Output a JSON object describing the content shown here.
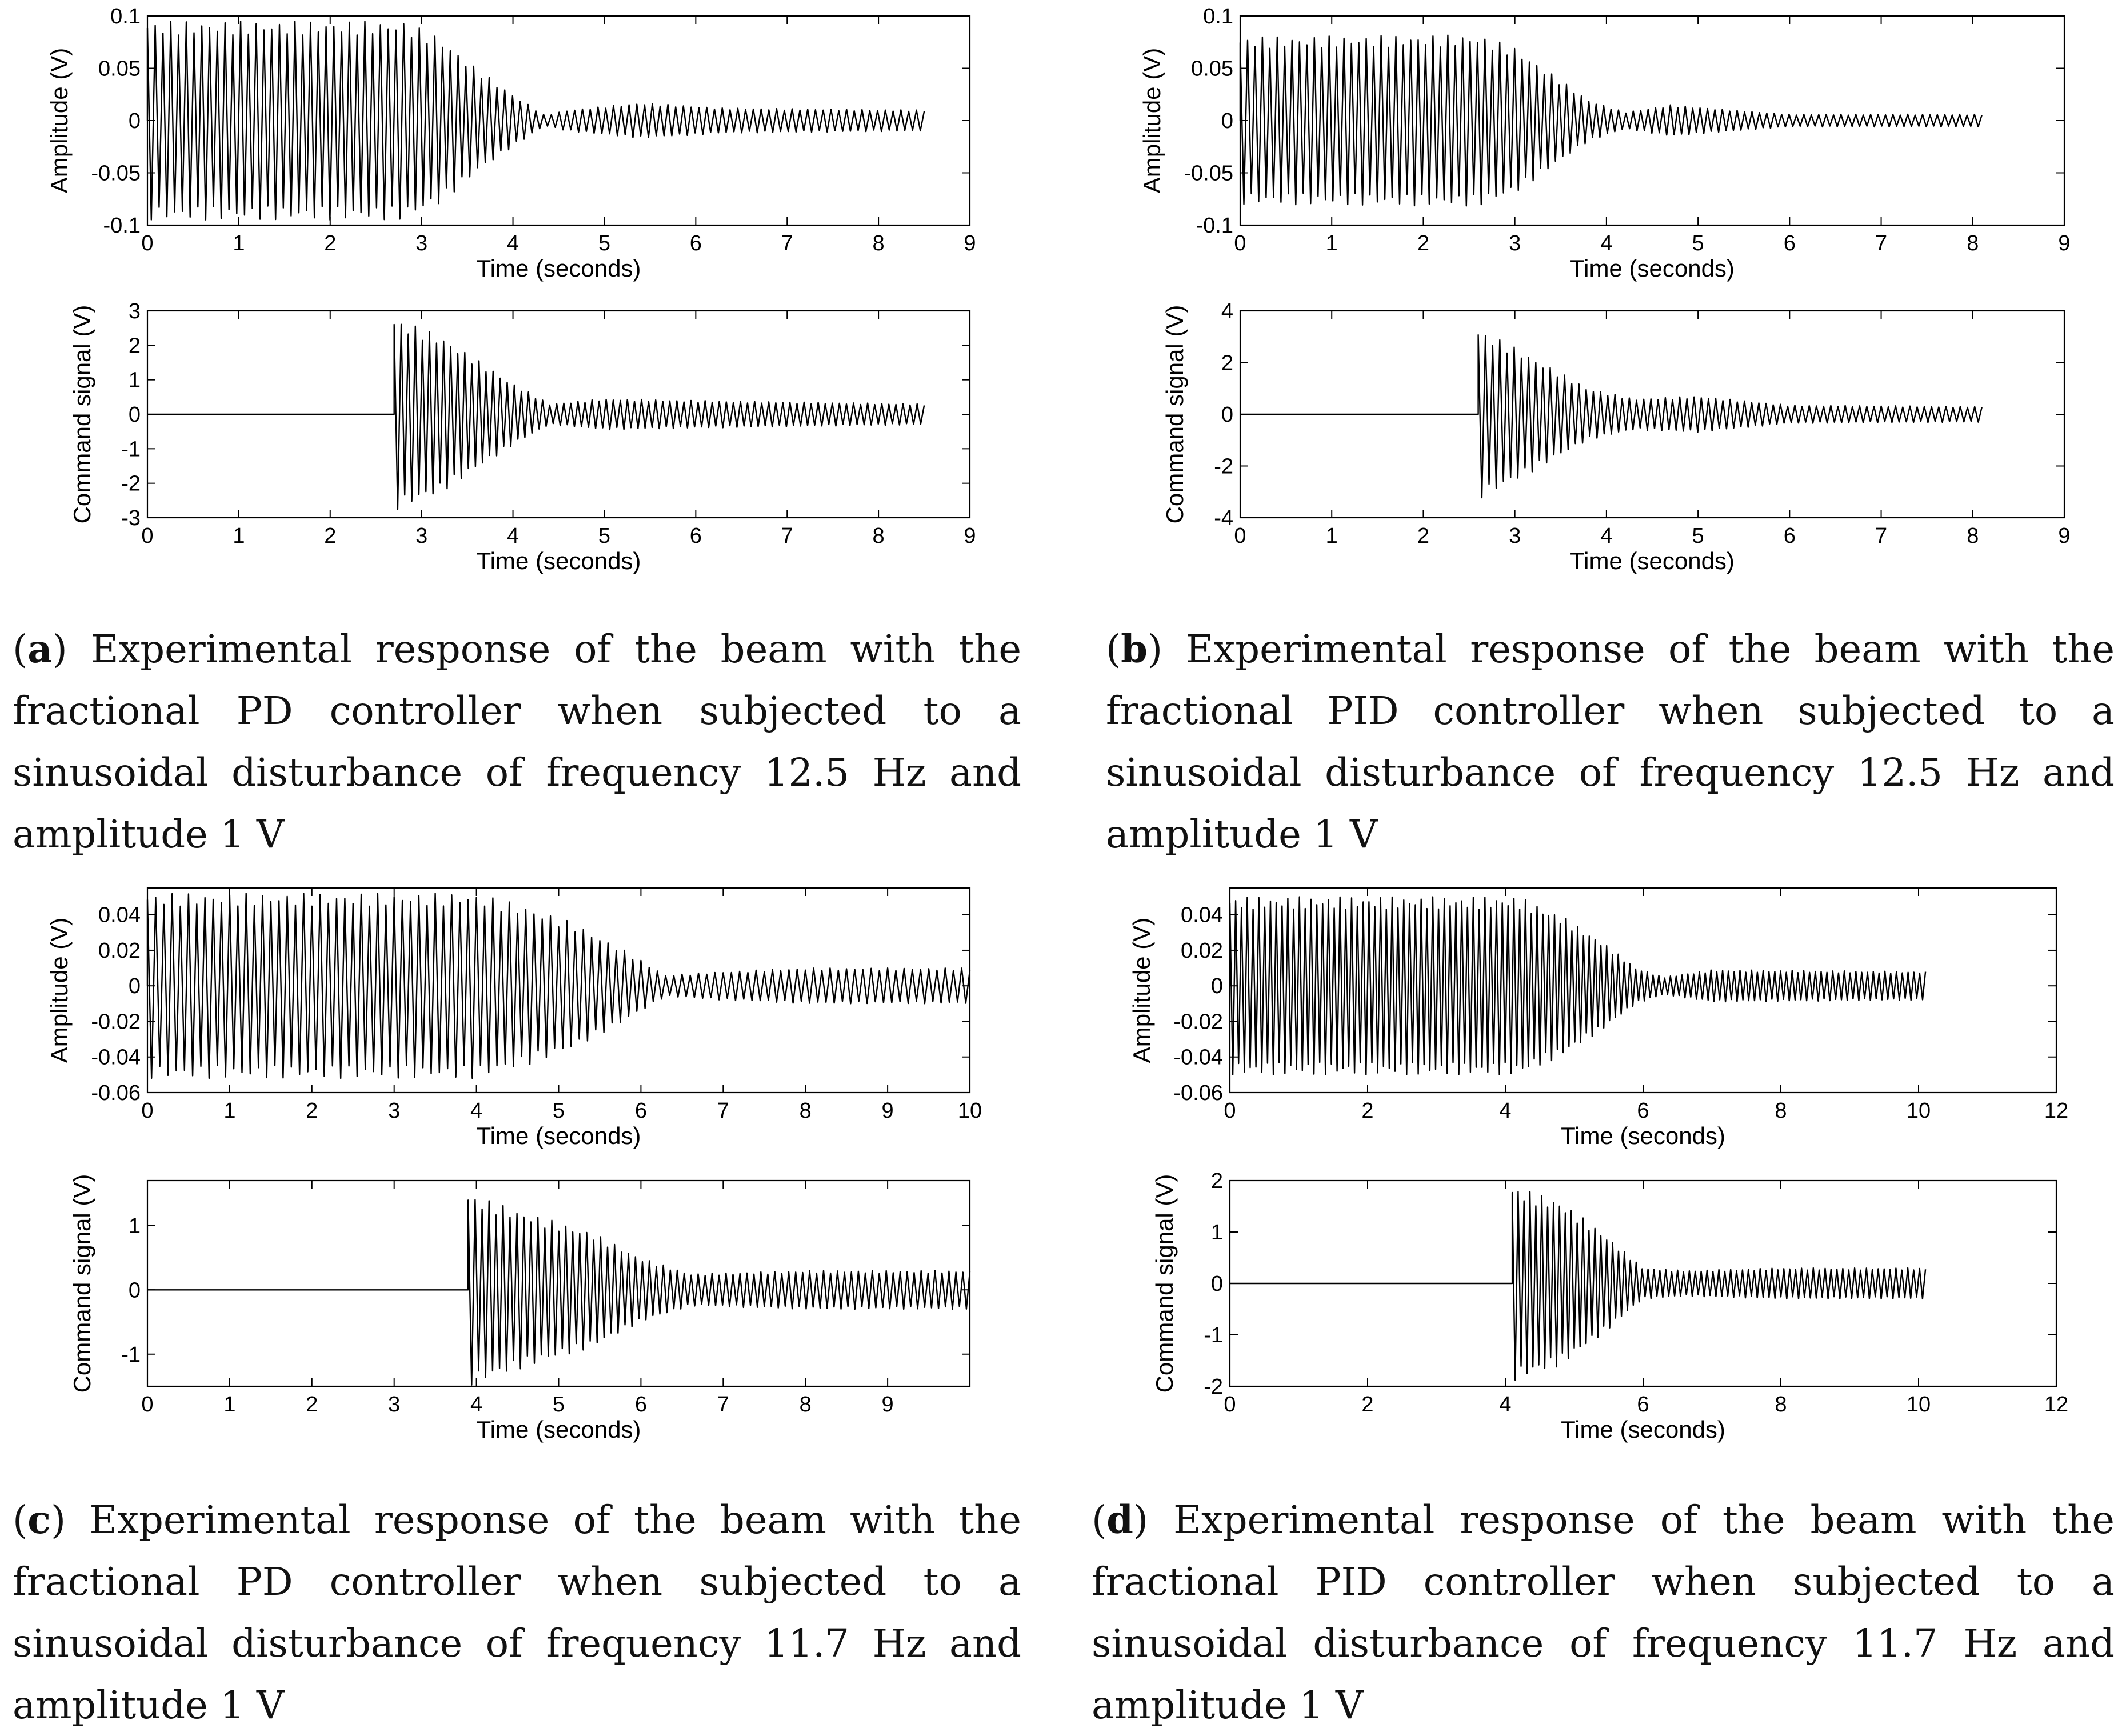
{
  "captions": {
    "a": {
      "label": "a",
      "text": "Experimental response of the beam with the fractional PD controller when subjected to a sinusoidal disturbance of frequency 12.5 Hz and amplitude 1 V"
    },
    "b": {
      "label": "b",
      "text": "Experimental response of the beam with the fractional PID controller when subjected to a sinusoidal disturbance of frequency 12.5 Hz and amplitude 1 V"
    },
    "c": {
      "label": "c",
      "text": "Experimental response of the beam with the fractional PD controller when subjected to a sinusoidal disturbance of frequency 11.7 Hz and amplitude 1 V"
    },
    "d": {
      "label": "d",
      "text": "Experimental response of the beam with the fractional PID controller when subjected to a sinusoidal disturbance of frequency 11.7 Hz and amplitude 1 V"
    }
  },
  "colors": {
    "trace": "#000000",
    "axis": "#000000",
    "background": "#ffffff"
  },
  "chart_data": [
    {
      "id": "a-amplitude",
      "panel": "a",
      "type": "line",
      "title": "",
      "xlabel": "Time (seconds)",
      "ylabel": "Amplitude (V)",
      "xlim": [
        0,
        9
      ],
      "ylim": [
        -0.1,
        0.1
      ],
      "xticks": [
        0,
        1,
        2,
        3,
        4,
        5,
        6,
        7,
        8,
        9
      ],
      "yticks": [
        -0.1,
        -0.05,
        0,
        0.05,
        0.1
      ],
      "ytick_labels": [
        "-0.1",
        "-0.05",
        "0",
        "0.05",
        "0.1"
      ],
      "grid": false,
      "signal": {
        "duration": 8.5,
        "frequency_hz": 12.5,
        "cycles_shown": 100,
        "envelope": [
          [
            0,
            0.095
          ],
          [
            2.8,
            0.095
          ],
          [
            3.2,
            0.08
          ],
          [
            3.6,
            0.05
          ],
          [
            4.0,
            0.025
          ],
          [
            4.35,
            0.005
          ],
          [
            4.6,
            0.01
          ],
          [
            5.4,
            0.017
          ],
          [
            6.3,
            0.012
          ],
          [
            8.5,
            0.01
          ]
        ]
      }
    },
    {
      "id": "a-command",
      "panel": "a",
      "type": "line",
      "title": "",
      "xlabel": "Time (seconds)",
      "ylabel": "Command signal (V)",
      "xlim": [
        0,
        9
      ],
      "ylim": [
        -3,
        3
      ],
      "xticks": [
        0,
        1,
        2,
        3,
        4,
        5,
        6,
        7,
        8,
        9
      ],
      "yticks": [
        -3,
        -2,
        -1,
        0,
        1,
        2,
        3
      ],
      "ytick_labels": [
        "-3",
        "-2",
        "-1",
        "0",
        "1",
        "2",
        "3"
      ],
      "grid": false,
      "signal": {
        "duration": 8.5,
        "frequency_hz": 12.5,
        "cycles_shown": 75,
        "start": 2.7,
        "envelope": [
          [
            2.7,
            2.8
          ],
          [
            3.2,
            2.3
          ],
          [
            3.6,
            1.6
          ],
          [
            4.0,
            0.9
          ],
          [
            4.4,
            0.3
          ],
          [
            5.0,
            0.45
          ],
          [
            6.0,
            0.4
          ],
          [
            8.5,
            0.3
          ]
        ]
      }
    },
    {
      "id": "b-amplitude",
      "panel": "b",
      "type": "line",
      "title": "",
      "xlabel": "Time (seconds)",
      "ylabel": "Amplitude (V)",
      "xlim": [
        0,
        9
      ],
      "ylim": [
        -0.1,
        0.1
      ],
      "xticks": [
        0,
        1,
        2,
        3,
        4,
        5,
        6,
        7,
        8,
        9
      ],
      "yticks": [
        -0.1,
        -0.05,
        0,
        0.05,
        0.1
      ],
      "ytick_labels": [
        "-0.1",
        "-0.05",
        "0",
        "0.05",
        "0.1"
      ],
      "grid": false,
      "signal": {
        "duration": 8.1,
        "frequency_hz": 12.5,
        "cycles_shown": 100,
        "envelope": [
          [
            0,
            0.08
          ],
          [
            2.6,
            0.082
          ],
          [
            3.0,
            0.07
          ],
          [
            3.4,
            0.045
          ],
          [
            3.8,
            0.02
          ],
          [
            4.2,
            0.008
          ],
          [
            4.7,
            0.015
          ],
          [
            5.4,
            0.01
          ],
          [
            6.0,
            0.006
          ],
          [
            8.1,
            0.006
          ]
        ]
      }
    },
    {
      "id": "b-command",
      "panel": "b",
      "type": "line",
      "title": "",
      "xlabel": "Time (seconds)",
      "ylabel": "Command signal (V)",
      "xlim": [
        0,
        9
      ],
      "ylim": [
        -4,
        4
      ],
      "xticks": [
        0,
        1,
        2,
        3,
        4,
        5,
        6,
        7,
        8,
        9
      ],
      "yticks": [
        -4,
        -2,
        0,
        2,
        4
      ],
      "ytick_labels": [
        "-4",
        "-2",
        "0",
        "2",
        "4"
      ],
      "grid": false,
      "signal": {
        "duration": 8.1,
        "frequency_hz": 12.5,
        "cycles_shown": 70,
        "start": 2.6,
        "envelope": [
          [
            2.6,
            3.3
          ],
          [
            3.0,
            2.6
          ],
          [
            3.4,
            1.8
          ],
          [
            3.8,
            1.0
          ],
          [
            4.3,
            0.6
          ],
          [
            5.0,
            0.7
          ],
          [
            6.0,
            0.35
          ],
          [
            8.1,
            0.3
          ]
        ]
      }
    },
    {
      "id": "c-amplitude",
      "panel": "c",
      "type": "line",
      "title": "",
      "xlabel": "Time (seconds)",
      "ylabel": "Amplitude (V)",
      "xlim": [
        0,
        10
      ],
      "ylim": [
        -0.06,
        0.055
      ],
      "xticks": [
        0,
        1,
        2,
        3,
        4,
        5,
        6,
        7,
        8,
        9,
        10
      ],
      "yticks": [
        -0.06,
        -0.04,
        -0.02,
        0,
        0.02,
        0.04
      ],
      "ytick_labels": [
        "-0.06",
        "-0.04",
        "-0.02",
        "0",
        "0.02",
        "0.04"
      ],
      "grid": false,
      "signal": {
        "duration": 10,
        "frequency_hz": 11.7,
        "cycles_shown": 100,
        "envelope": [
          [
            0,
            0.052
          ],
          [
            4.0,
            0.052
          ],
          [
            4.6,
            0.045
          ],
          [
            5.2,
            0.035
          ],
          [
            5.8,
            0.02
          ],
          [
            6.3,
            0.006
          ],
          [
            7.0,
            0.008
          ],
          [
            8.0,
            0.01
          ],
          [
            10,
            0.01
          ]
        ]
      }
    },
    {
      "id": "c-command",
      "panel": "c",
      "type": "line",
      "title": "",
      "xlabel": "Time (seconds)",
      "ylabel": "Command signal (V)",
      "xlim": [
        0,
        10
      ],
      "ylim": [
        -1.5,
        1.7
      ],
      "xticks": [
        0,
        1,
        2,
        3,
        4,
        5,
        6,
        7,
        8,
        9
      ],
      "yticks": [
        -1,
        0,
        1
      ],
      "ytick_labels": [
        "-1",
        "0",
        "1"
      ],
      "grid": false,
      "signal": {
        "duration": 10,
        "frequency_hz": 11.7,
        "cycles_shown": 72,
        "start": 3.9,
        "envelope": [
          [
            3.9,
            1.5
          ],
          [
            4.6,
            1.2
          ],
          [
            5.4,
            0.9
          ],
          [
            6.0,
            0.5
          ],
          [
            6.6,
            0.25
          ],
          [
            8.0,
            0.3
          ],
          [
            10,
            0.3
          ]
        ]
      }
    },
    {
      "id": "d-amplitude",
      "panel": "d",
      "type": "line",
      "title": "",
      "xlabel": "Time (seconds)",
      "ylabel": "Amplitude (V)",
      "xlim": [
        0,
        12
      ],
      "ylim": [
        -0.06,
        0.055
      ],
      "xticks": [
        0,
        2,
        4,
        6,
        8,
        10,
        12
      ],
      "yticks": [
        -0.06,
        -0.04,
        -0.02,
        0,
        0.02,
        0.04
      ],
      "ytick_labels": [
        "-0.06",
        "-0.04",
        "-0.02",
        "0",
        "0.02",
        "0.04"
      ],
      "grid": false,
      "signal": {
        "duration": 10.1,
        "frequency_hz": 11.7,
        "cycles_shown": 120,
        "envelope": [
          [
            0,
            0.05
          ],
          [
            4.2,
            0.05
          ],
          [
            4.8,
            0.04
          ],
          [
            5.4,
            0.025
          ],
          [
            5.9,
            0.01
          ],
          [
            6.3,
            0.005
          ],
          [
            7.0,
            0.009
          ],
          [
            10.1,
            0.008
          ]
        ]
      }
    },
    {
      "id": "d-command",
      "panel": "d",
      "type": "line",
      "title": "",
      "xlabel": "Time (seconds)",
      "ylabel": "Command signal (V)",
      "xlim": [
        0,
        12
      ],
      "ylim": [
        -2,
        2
      ],
      "xticks": [
        0,
        2,
        4,
        6,
        8,
        10,
        12
      ],
      "yticks": [
        -2,
        -1,
        0,
        1,
        2
      ],
      "ytick_labels": [
        "-2",
        "-1",
        "0",
        "1",
        "2"
      ],
      "grid": false,
      "signal": {
        "duration": 10.1,
        "frequency_hz": 11.7,
        "cycles_shown": 70,
        "start": 4.1,
        "envelope": [
          [
            4.1,
            1.9
          ],
          [
            4.8,
            1.6
          ],
          [
            5.4,
            1.0
          ],
          [
            6.0,
            0.3
          ],
          [
            6.6,
            0.25
          ],
          [
            8.0,
            0.3
          ],
          [
            10.1,
            0.3
          ]
        ]
      }
    }
  ]
}
